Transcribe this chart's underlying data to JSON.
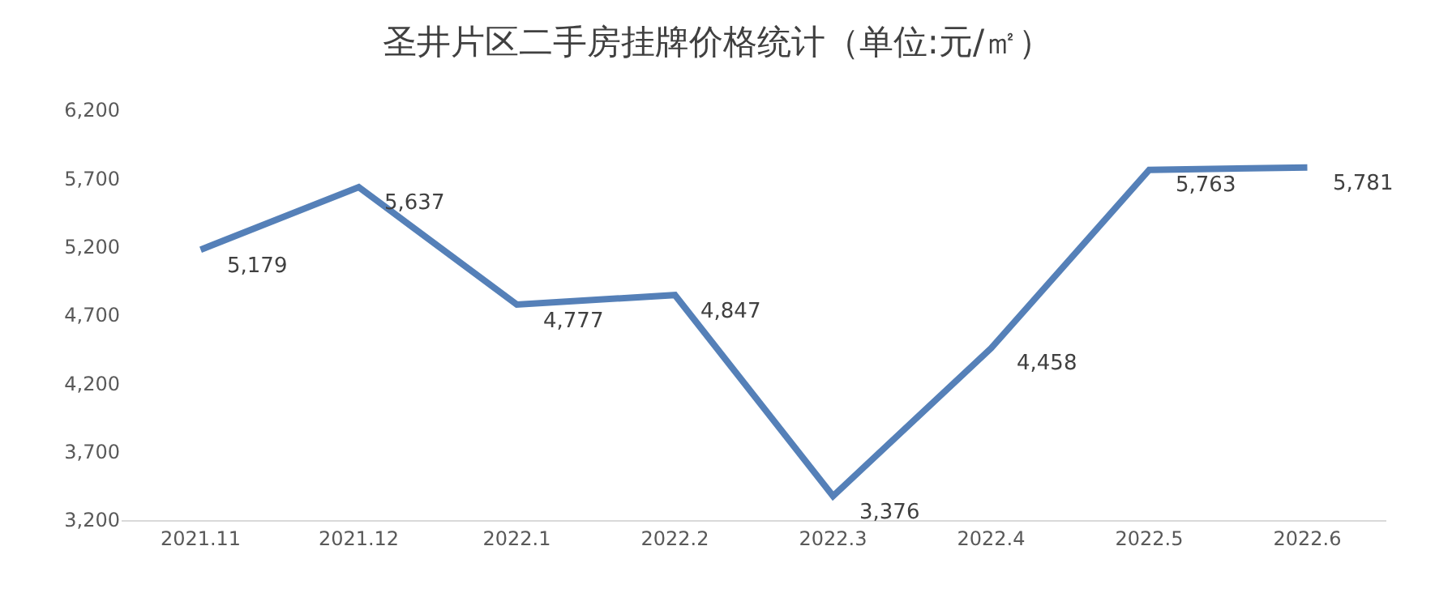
{
  "chart_data": {
    "type": "line",
    "title": "圣井片区二手房挂牌价格统计（单位:元/㎡）",
    "categories": [
      "2021.11",
      "2021.12",
      "2022.1",
      "2022.2",
      "2022.3",
      "2022.4",
      "2022.5",
      "2022.6"
    ],
    "series": [
      {
        "color": "#5580b8",
        "values": [
          5179,
          5637,
          4777,
          4847,
          3376,
          4458,
          5763,
          5781
        ],
        "value_labels": [
          "5,179",
          "5,637",
          "4,777",
          "4,847",
          "3,376",
          "4,458",
          "5,763",
          "5,781"
        ]
      }
    ],
    "ylim": [
      3200,
      6200
    ],
    "yticks": [
      {
        "value": 3200,
        "label": "3,200"
      },
      {
        "value": 3700,
        "label": "3,700"
      },
      {
        "value": 4200,
        "label": "4,200"
      },
      {
        "value": 4700,
        "label": "4,700"
      },
      {
        "value": 5200,
        "label": "5,200"
      },
      {
        "value": 5700,
        "label": "5,700"
      },
      {
        "value": 6200,
        "label": "6,200"
      }
    ],
    "grid": false,
    "marker": "none",
    "line_style": "solid"
  }
}
